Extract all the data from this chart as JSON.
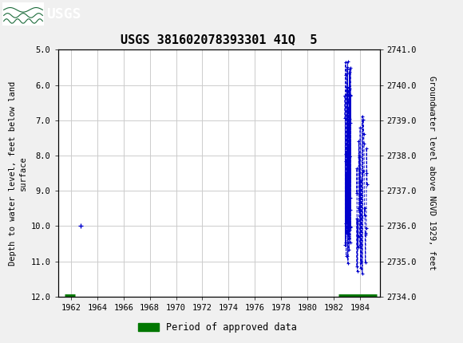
{
  "title": "USGS 381602078393301 41Q  5",
  "ylabel_left": "Depth to water level, feet below land\nsurface",
  "ylabel_right": "Groundwater level above NGVD 1929, feet",
  "ylim_left": [
    5.0,
    12.0
  ],
  "ylim_right": [
    2741.0,
    2734.0
  ],
  "yticks_left": [
    5.0,
    6.0,
    7.0,
    8.0,
    9.0,
    10.0,
    11.0,
    12.0
  ],
  "yticks_right": [
    2741.0,
    2740.0,
    2739.0,
    2738.0,
    2737.0,
    2736.0,
    2735.0,
    2734.0
  ],
  "xlim": [
    1961.0,
    1985.5
  ],
  "xticks": [
    1962,
    1964,
    1966,
    1968,
    1970,
    1972,
    1974,
    1976,
    1978,
    1980,
    1982,
    1984
  ],
  "header_color": "#1b6b3a",
  "background_color": "#f0f0f0",
  "plot_bg_color": "#ffffff",
  "grid_color": "#cccccc",
  "data_color": "#0000cc",
  "approved_color": "#007700",
  "single_point_x": 1962.72,
  "single_point_y": 10.0,
  "approved_bar1_x1": 1961.5,
  "approved_bar1_x2": 1962.3,
  "approved_bar2_x1": 1982.35,
  "approved_bar2_x2": 1985.3,
  "approved_bar_y": 12.0,
  "legend_label": "Period of approved data",
  "font_family": "DejaVu Sans Mono",
  "title_fontsize": 11,
  "tick_fontsize": 7.5,
  "label_fontsize": 7.5
}
